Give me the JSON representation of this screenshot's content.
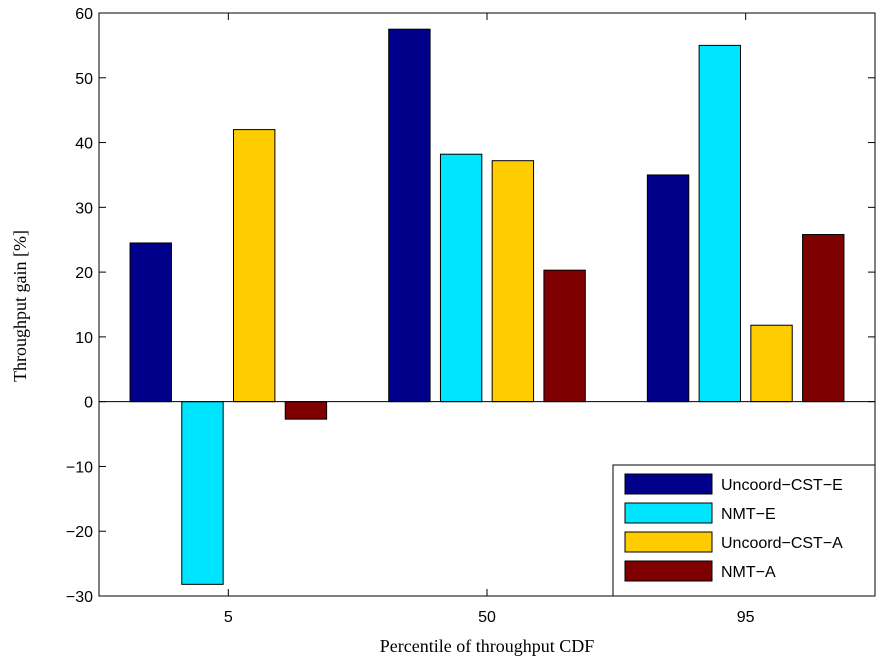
{
  "chart_data": {
    "type": "bar",
    "title": "",
    "xlabel": "Percentile of throughput CDF",
    "ylabel": "Throughput gain [%]",
    "categories": [
      "5",
      "50",
      "95"
    ],
    "ylim": [
      -30,
      60
    ],
    "yticks": [
      -30,
      -20,
      -10,
      0,
      10,
      20,
      30,
      40,
      50,
      60
    ],
    "grid": false,
    "legend_position": "bottom-right",
    "series": [
      {
        "name": "Uncoord−CST−E",
        "color": "#00008b",
        "values": [
          24.5,
          57.5,
          35.0
        ]
      },
      {
        "name": "NMT−E",
        "color": "#00e5ff",
        "values": [
          -28.2,
          38.2,
          55.0
        ]
      },
      {
        "name": "Uncoord−CST−A",
        "color": "#ffcc00",
        "values": [
          42.0,
          37.2,
          11.8
        ]
      },
      {
        "name": "NMT−A",
        "color": "#7f0000",
        "values": [
          -2.7,
          20.3,
          25.8
        ]
      }
    ]
  }
}
